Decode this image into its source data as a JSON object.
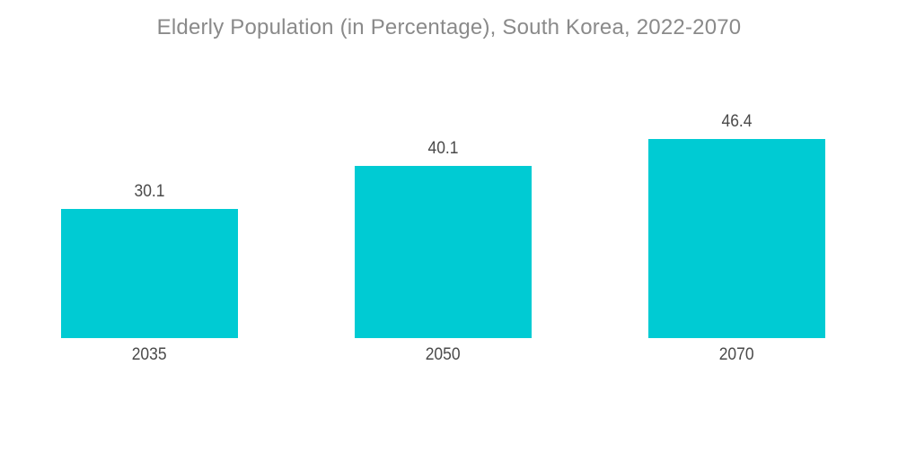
{
  "chart_data": {
    "type": "bar",
    "title": "Elderly Population (in Percentage), South Korea, 2022-2070",
    "categories": [
      "2035",
      "2050",
      "2070"
    ],
    "values": [
      30.1,
      40.1,
      46.4
    ],
    "value_labels": [
      "30.1",
      "40.1",
      "46.4"
    ],
    "xlabel": "",
    "ylabel": "",
    "ylim": [
      0,
      46.4
    ],
    "grid": false,
    "legend": false,
    "orientation": "vertical"
  },
  "colors": {
    "background": "#ffffff",
    "bar": "#00CBD3",
    "title_text": "#8A8A8A",
    "label_text": "#4A4A4A"
  }
}
